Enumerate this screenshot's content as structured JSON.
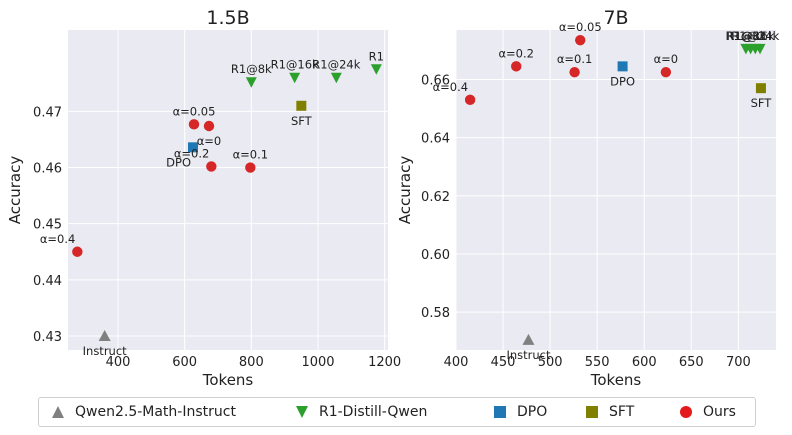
{
  "chart_data": [
    {
      "type": "scatter",
      "title": "1.5B",
      "xlabel": "Tokens",
      "ylabel": "Accuracy",
      "xlim": [
        250,
        1210
      ],
      "ylim": [
        0.4275,
        0.4845
      ],
      "xticks": [
        400,
        600,
        800,
        1000,
        1200
      ],
      "yticks": [
        0.43,
        0.44,
        0.45,
        0.46,
        0.47
      ],
      "xtick_labels": [
        "400",
        "600",
        "800",
        "1000",
        "1200"
      ],
      "ytick_labels": [
        "0.43",
        "0.44",
        "0.45",
        "0.46",
        "0.47"
      ],
      "grid": true,
      "series": [
        {
          "name": "Qwen2.5-Math-Instruct",
          "marker": "triangle-up",
          "color": "#808080",
          "points": [
            {
              "x": 360,
              "y": 0.43,
              "label": "Instruct",
              "label_pos": "below"
            }
          ]
        },
        {
          "name": "R1-Distill-Qwen",
          "marker": "triangle-down",
          "color": "#2ca02c",
          "points": [
            {
              "x": 800,
              "y": 0.4752,
              "label": "R1@8k",
              "label_pos": "above"
            },
            {
              "x": 930,
              "y": 0.476,
              "label": "R1@16k",
              "label_pos": "above"
            },
            {
              "x": 1055,
              "y": 0.476,
              "label": "R1@24k",
              "label_pos": "above"
            },
            {
              "x": 1175,
              "y": 0.4775,
              "label": "R1",
              "label_pos": "above"
            }
          ]
        },
        {
          "name": "DPO",
          "marker": "square",
          "color": "#1f77b4",
          "points": [
            {
              "x": 625,
              "y": 0.4636,
              "label": "DPO",
              "label_pos": "below-left"
            }
          ]
        },
        {
          "name": "SFT",
          "marker": "square",
          "color": "#808000",
          "points": [
            {
              "x": 950,
              "y": 0.471,
              "label": "SFT",
              "label_pos": "below"
            }
          ]
        },
        {
          "name": "Ours",
          "marker": "circle",
          "color": "#d62728",
          "points": [
            {
              "x": 278,
              "y": 0.445,
              "label": "α=0.4",
              "label_pos": "above-left"
            },
            {
              "x": 628,
              "y": 0.4677,
              "label": "α=0.05",
              "label_pos": "above"
            },
            {
              "x": 673,
              "y": 0.4674,
              "label": "α=0",
              "label_pos": "below"
            },
            {
              "x": 680,
              "y": 0.4602,
              "label": "α=0.2",
              "label_pos": "above-left"
            },
            {
              "x": 797,
              "y": 0.46,
              "label": "α=0.1",
              "label_pos": "above"
            }
          ]
        }
      ]
    },
    {
      "type": "scatter",
      "title": "7B",
      "xlabel": "Tokens",
      "ylabel": "Accuracy",
      "xlim": [
        400,
        740
      ],
      "ylim": [
        0.567,
        0.677
      ],
      "xticks": [
        400,
        450,
        500,
        550,
        600,
        650,
        700
      ],
      "yticks": [
        0.58,
        0.6,
        0.62,
        0.64,
        0.66
      ],
      "xtick_labels": [
        "400",
        "450",
        "500",
        "550",
        "600",
        "650",
        "700"
      ],
      "ytick_labels": [
        "0.58",
        "0.60",
        "0.62",
        "0.64",
        "0.66"
      ],
      "grid": true,
      "series": [
        {
          "name": "Qwen2.5-Math-Instruct",
          "marker": "triangle-up",
          "color": "#808080",
          "points": [
            {
              "x": 477,
              "y": 0.5705,
              "label": "Instruct",
              "label_pos": "below"
            }
          ]
        },
        {
          "name": "R1-Distill-Qwen",
          "marker": "triangle-down",
          "color": "#2ca02c",
          "points": [
            {
              "x": 708,
              "y": 0.6705,
              "label": "R1@8k",
              "label_pos": "above"
            },
            {
              "x": 713,
              "y": 0.6705,
              "label": "R1@16k",
              "label_pos": "above"
            },
            {
              "x": 718,
              "y": 0.6705,
              "label": "R1@24k",
              "label_pos": "above"
            },
            {
              "x": 723,
              "y": 0.6705,
              "label": "R1",
              "label_pos": "above"
            }
          ]
        },
        {
          "name": "DPO",
          "marker": "square",
          "color": "#1f77b4",
          "points": [
            {
              "x": 577,
              "y": 0.6645,
              "label": "DPO",
              "label_pos": "below"
            }
          ]
        },
        {
          "name": "SFT",
          "marker": "square",
          "color": "#808000",
          "points": [
            {
              "x": 724,
              "y": 0.657,
              "label": "SFT",
              "label_pos": "below"
            }
          ]
        },
        {
          "name": "Ours",
          "marker": "circle",
          "color": "#d62728",
          "points": [
            {
              "x": 415,
              "y": 0.653,
              "label": "α=0.4",
              "label_pos": "above-left"
            },
            {
              "x": 464,
              "y": 0.6645,
              "label": "α=0.2",
              "label_pos": "above"
            },
            {
              "x": 526,
              "y": 0.6625,
              "label": "α=0.1",
              "label_pos": "above"
            },
            {
              "x": 532,
              "y": 0.6735,
              "label": "α=0.05",
              "label_pos": "above"
            },
            {
              "x": 623,
              "y": 0.6625,
              "label": "α=0",
              "label_pos": "above"
            }
          ]
        }
      ]
    }
  ],
  "legend": [
    {
      "label": "Qwen2.5-Math-Instruct",
      "marker": "triangle-up",
      "color": "#808080"
    },
    {
      "label": "R1-Distill-Qwen",
      "marker": "triangle-down",
      "color": "#2ca02c"
    },
    {
      "label": "DPO",
      "marker": "square",
      "color": "#1f77b4"
    },
    {
      "label": "SFT",
      "marker": "square",
      "color": "#808000"
    },
    {
      "label": "Ours",
      "marker": "circle",
      "color": "#e41a1c"
    }
  ],
  "colors": {
    "plot_bg": "#eaeaf2",
    "grid": "#ffffff"
  }
}
